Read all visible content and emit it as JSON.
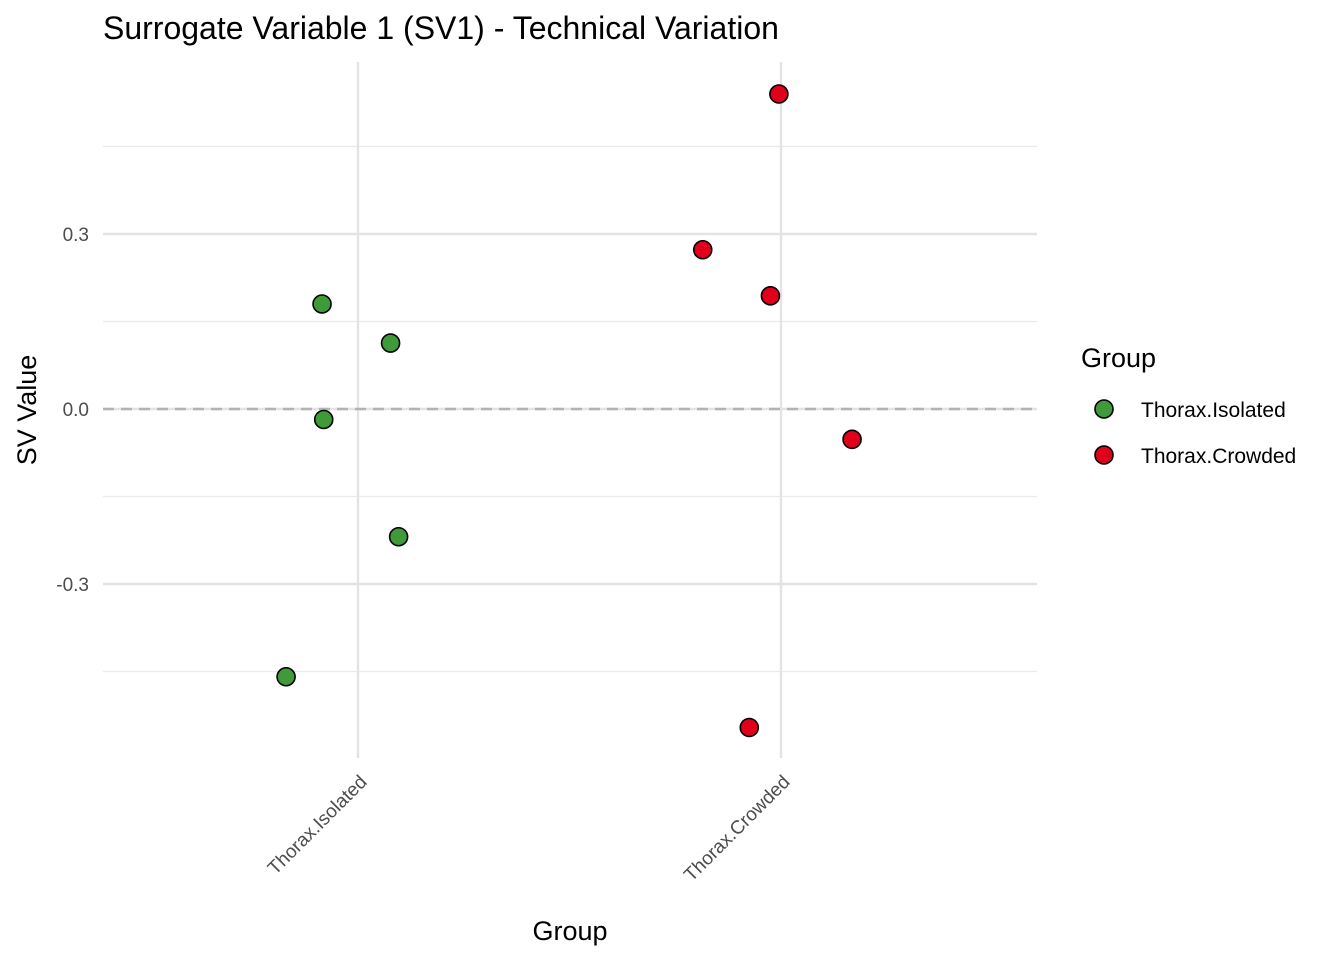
{
  "chart_data": {
    "type": "scatter",
    "title": "Surrogate Variable 1 (SV1) - Technical Variation",
    "xlabel": "Group",
    "ylabel": "SV Value",
    "categories": [
      "Thorax.Isolated",
      "Thorax.Crowded"
    ],
    "ylim": [
      -0.6,
      0.6
    ],
    "yticks": [
      -0.3,
      0.0,
      0.3
    ],
    "ytick_labels": [
      "-0.3",
      "0.0",
      "0.3"
    ],
    "reference_line": {
      "y": 0.0,
      "style": "dashed"
    },
    "grid": true,
    "legend": {
      "title": "Group",
      "position": "right",
      "entries": [
        {
          "label": "Thorax.Isolated",
          "color": "#3f9b3a"
        },
        {
          "label": "Thorax.Crowded",
          "color": "#e0001b"
        }
      ]
    },
    "series": [
      {
        "name": "Thorax.Isolated",
        "color": "#3f9b3a",
        "points": [
          {
            "jitter": -0.085,
            "y": 0.18
          },
          {
            "jitter": 0.077,
            "y": 0.113
          },
          {
            "jitter": -0.081,
            "y": -0.018
          },
          {
            "jitter": 0.096,
            "y": -0.219
          },
          {
            "jitter": -0.17,
            "y": -0.459
          }
        ]
      },
      {
        "name": "Thorax.Crowded",
        "color": "#e0001b",
        "points": [
          {
            "jitter": -0.005,
            "y": 0.54
          },
          {
            "jitter": -0.185,
            "y": 0.273
          },
          {
            "jitter": -0.025,
            "y": 0.194
          },
          {
            "jitter": 0.168,
            "y": -0.052
          },
          {
            "jitter": -0.075,
            "y": -0.546
          }
        ]
      }
    ]
  }
}
